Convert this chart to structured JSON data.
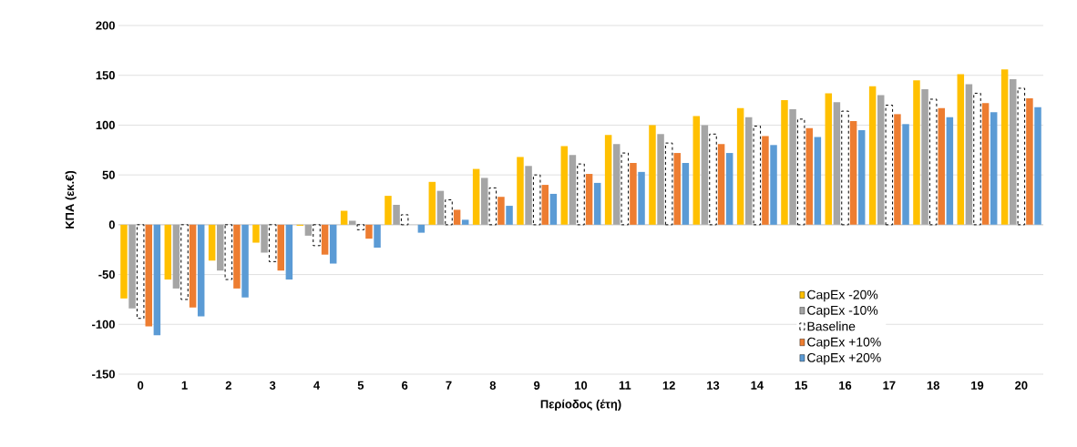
{
  "chart_data": {
    "type": "bar",
    "xlabel": "Περίοδος (έτη)",
    "ylabel": "ΚΠΑ (εκ.€)",
    "categories": [
      "0",
      "1",
      "2",
      "3",
      "4",
      "5",
      "6",
      "7",
      "8",
      "9",
      "10",
      "11",
      "12",
      "13",
      "14",
      "15",
      "16",
      "17",
      "18",
      "19",
      "20"
    ],
    "series": [
      {
        "name": "CapEx -20%",
        "color": "#ffc000",
        "values": [
          -74,
          -55,
          -36,
          -18,
          -1,
          14,
          29,
          43,
          56,
          68,
          79,
          90,
          100,
          109,
          117,
          125,
          132,
          139,
          145,
          151,
          156
        ]
      },
      {
        "name": "CapEx -10%",
        "color": "#a5a5a5",
        "values": [
          -84,
          -64,
          -46,
          -28,
          -11,
          4,
          20,
          34,
          47,
          59,
          70,
          81,
          91,
          100,
          108,
          116,
          123,
          130,
          136,
          141,
          146
        ]
      },
      {
        "name": "Baseline",
        "color": "#ffffff",
        "line_style": "dashed",
        "values": [
          -94,
          -75,
          -55,
          -37,
          -21,
          -5,
          10,
          25,
          37,
          50,
          61,
          72,
          82,
          91,
          99,
          106,
          114,
          120,
          126,
          132,
          137
        ]
      },
      {
        "name": "CapEx +10%",
        "color": "#ed7d31",
        "values": [
          -102,
          -83,
          -64,
          -46,
          -30,
          -14,
          0,
          15,
          28,
          40,
          51,
          62,
          72,
          81,
          89,
          97,
          104,
          111,
          117,
          122,
          127
        ]
      },
      {
        "name": "CapEx +20%",
        "color": "#5b9bd5",
        "values": [
          -111,
          -92,
          -73,
          -55,
          -39,
          -23,
          -8,
          5,
          19,
          31,
          42,
          53,
          62,
          72,
          80,
          88,
          95,
          101,
          108,
          113,
          118
        ]
      }
    ],
    "ylim": [
      -150,
      200
    ],
    "yticks": [
      -150,
      -100,
      -50,
      0,
      50,
      100,
      150,
      200
    ],
    "grid": "y",
    "legend": "bottom right"
  }
}
